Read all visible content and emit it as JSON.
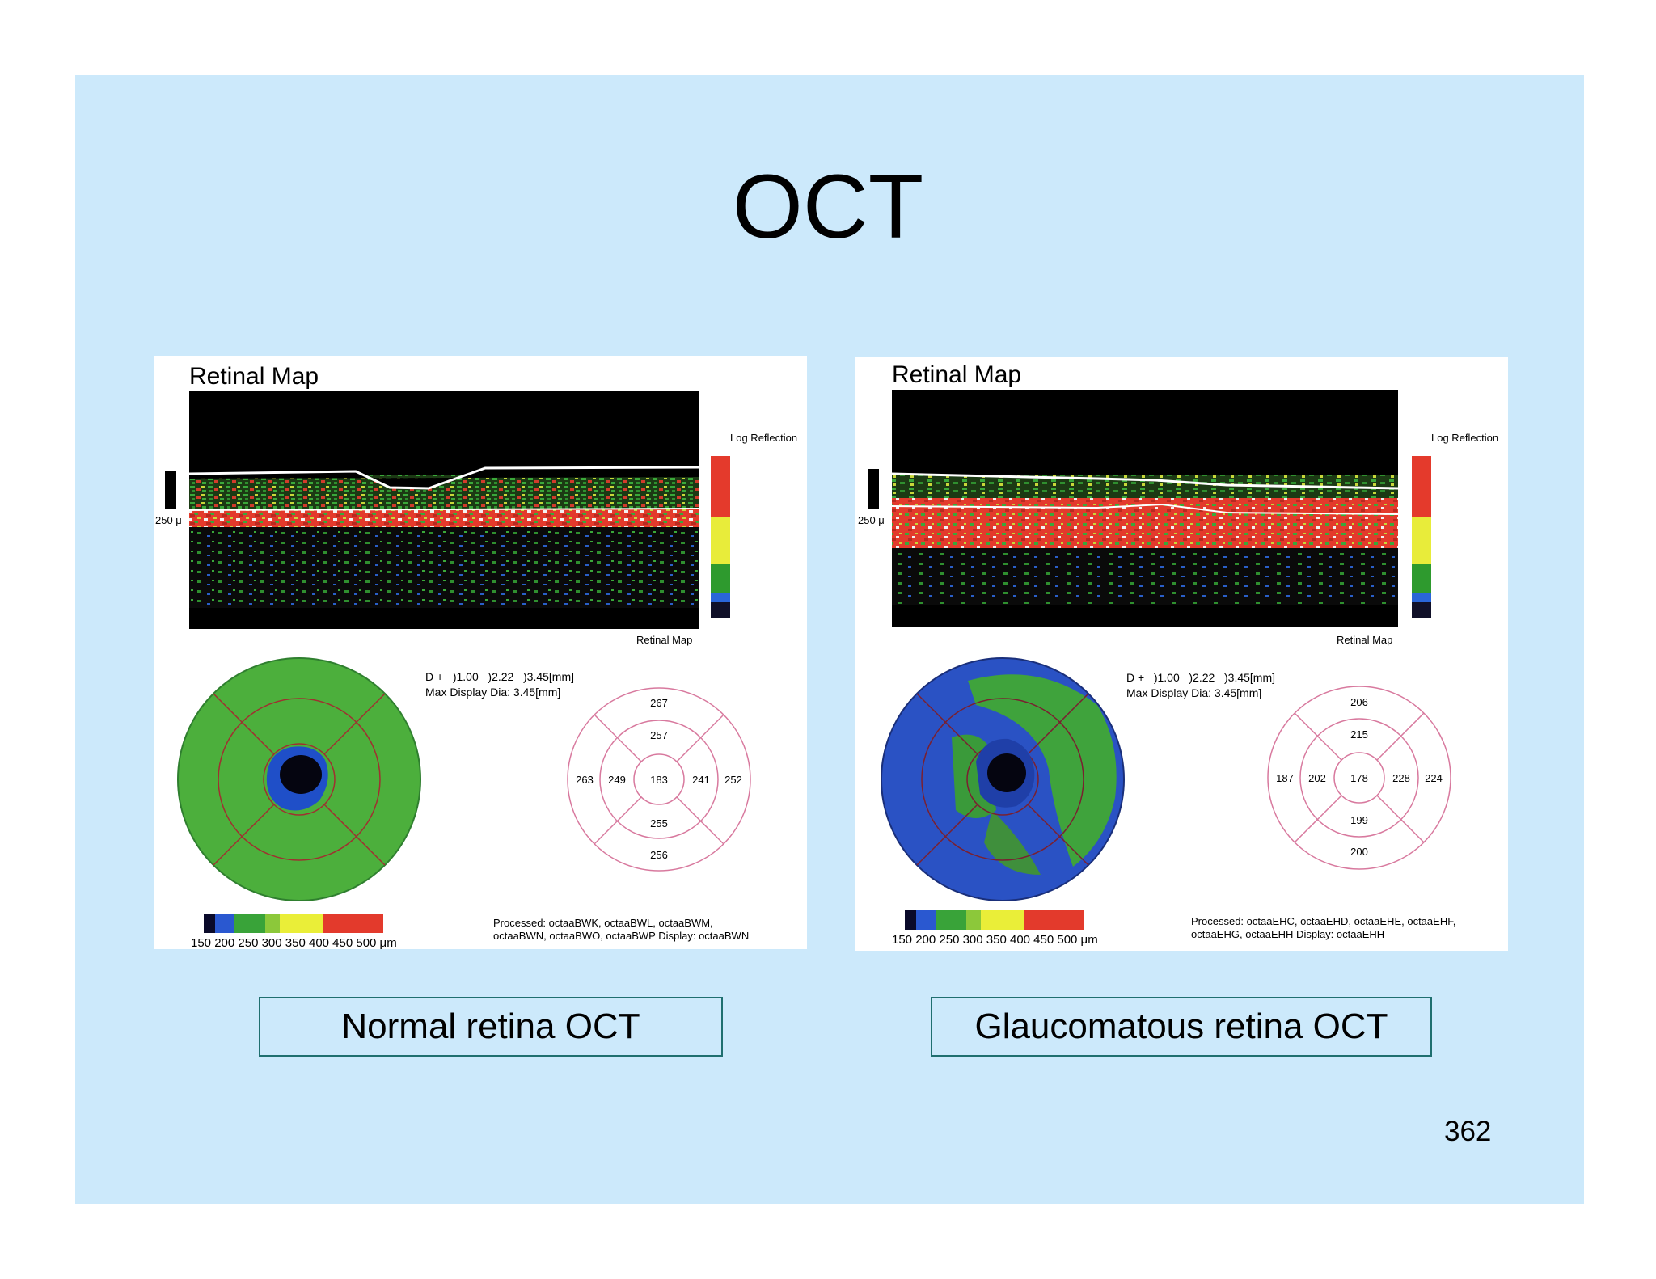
{
  "slide": {
    "title": "OCT",
    "page_number": "362"
  },
  "colors": {
    "background": "#cce9fb",
    "caption_border": "#1f6f6f"
  },
  "panels": [
    {
      "id": "normal",
      "heading": "Retinal Map",
      "log_reflection_label": "Log Reflection",
      "scale_bar_label": "250 μ",
      "scan_footer_label": "Retinal Map",
      "diameter_line": "D +   )1.00   )2.22   )3.45[mm]",
      "max_display_line": "Max Display Dia: 3.45[mm]",
      "sector_values": {
        "outer_top": "267",
        "inner_top": "257",
        "outer_left": "263",
        "inner_left": "249",
        "center": "183",
        "inner_right": "241",
        "outer_right": "252",
        "inner_bottom": "255",
        "outer_bottom": "256"
      },
      "color_scale_label": "150 200 250 300 350 400 450 500 μm",
      "processed_line1": "Processed: octaaBWK, octaaBWL, octaaBWM,",
      "processed_line2": "octaaBWN, octaaBWO, octaaBWP Display: octaaBWN",
      "caption": "Normal retina OCT"
    },
    {
      "id": "glaucomatous",
      "heading": "Retinal Map",
      "log_reflection_label": "Log Reflection",
      "scale_bar_label": "250 μ",
      "scan_footer_label": "Retinal Map",
      "diameter_line": "D +   )1.00   )2.22   )3.45[mm]",
      "max_display_line": "Max Display Dia: 3.45[mm]",
      "sector_values": {
        "outer_top": "206",
        "inner_top": "215",
        "outer_left": "187",
        "inner_left": "202",
        "center": "178",
        "inner_right": "228",
        "outer_right": "224",
        "inner_bottom": "199",
        "outer_bottom": "200"
      },
      "color_scale_label": "150 200 250 300 350 400 450 500 μm",
      "processed_line1": "Processed: octaaEHC, octaaEHD, octaaEHE, octaaEHF,",
      "processed_line2": "octaaEHG, octaaEHH Display: octaaEHH",
      "caption": "Glaucomatous retina OCT"
    }
  ]
}
